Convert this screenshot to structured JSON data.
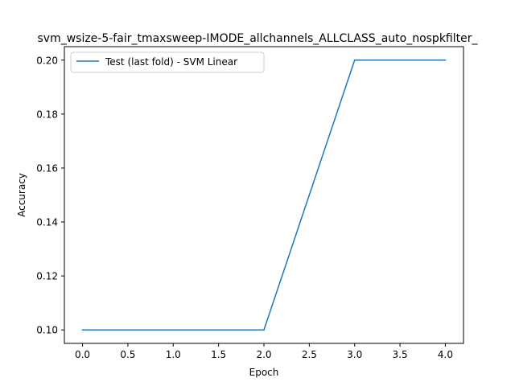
{
  "chart_data": {
    "type": "line",
    "title": "svm_wsize-5-fair_tmaxsweep-IMODE_allchannels_ALLCLASS_auto_nospkfilter_",
    "xlabel": "Epoch",
    "ylabel": "Accuracy",
    "xlim": [
      -0.2,
      4.2
    ],
    "ylim": [
      0.095,
      0.205
    ],
    "xticks": [
      0.0,
      0.5,
      1.0,
      1.5,
      2.0,
      2.5,
      3.0,
      3.5,
      4.0
    ],
    "xtick_labels": [
      "0.0",
      "0.5",
      "1.0",
      "1.5",
      "2.0",
      "2.5",
      "3.0",
      "3.5",
      "4.0"
    ],
    "yticks": [
      0.1,
      0.12,
      0.14,
      0.16,
      0.18,
      0.2
    ],
    "ytick_labels": [
      "0.10",
      "0.12",
      "0.14",
      "0.16",
      "0.18",
      "0.20"
    ],
    "grid": false,
    "legend": "upper-left",
    "series": [
      {
        "name": "Test (last fold) - SVM Linear",
        "color": "#1f77b4",
        "x": [
          0,
          1,
          2,
          3,
          4
        ],
        "y": [
          0.1,
          0.1,
          0.1,
          0.2,
          0.2
        ]
      }
    ]
  }
}
